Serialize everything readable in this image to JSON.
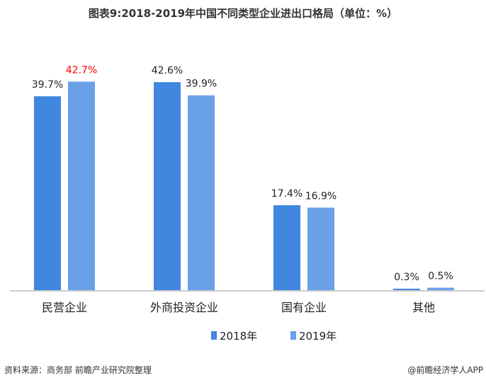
{
  "chart_data": {
    "type": "bar",
    "title": "图表9:2018-2019年中国不同类型企业进出口格局（单位：%）",
    "categories": [
      "民营企业",
      "外商投资企业",
      "国有企业",
      "其他"
    ],
    "series": [
      {
        "name": "2018年",
        "color": "#4187e0",
        "values": [
          39.7,
          42.6,
          17.4,
          0.3
        ],
        "labels": [
          "39.7%",
          "42.6%",
          "17.4%",
          "0.3%"
        ]
      },
      {
        "name": "2019年",
        "color": "#69a0e8",
        "values": [
          42.7,
          39.9,
          16.9,
          0.5
        ],
        "labels": [
          "42.7%",
          "39.9%",
          "16.9%",
          "0.5%"
        ]
      }
    ],
    "highlight_label_color": "#ff0000",
    "ylim": [
      0,
      45
    ],
    "grid": false,
    "legend": "bottom-center"
  },
  "footer": {
    "source": "资料来源：商务部 前瞻产业研究院整理",
    "brand": "@前瞻经济学人APP"
  }
}
